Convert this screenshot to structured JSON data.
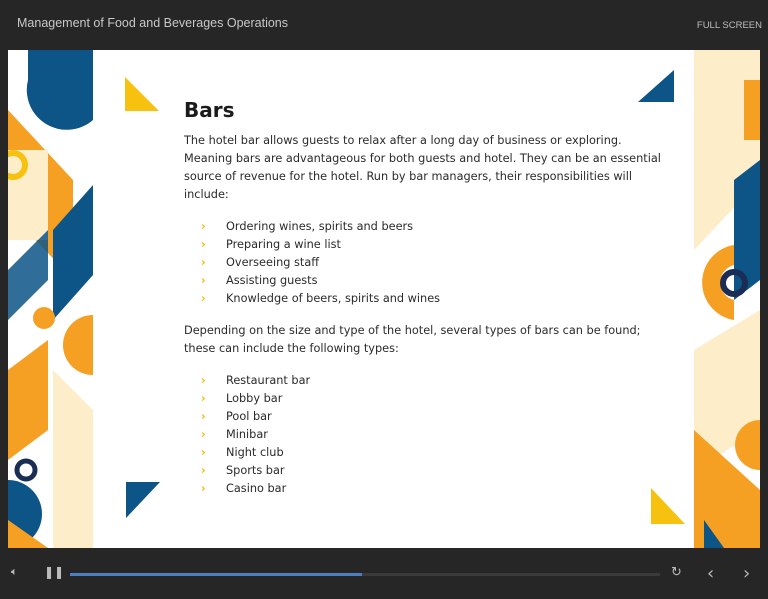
{
  "header": {
    "title": "Management of Food and Beverages Operations",
    "fullscreen_label": "FULL SCREEN"
  },
  "slide": {
    "heading": "Bars",
    "intro": "The hotel bar allows guests to relax after a long day of business or exploring. Meaning bars are advantageous for both guests and hotel. They can be an essential source of revenue for the hotel. Run by bar managers, their responsibilities will include:",
    "responsibilities": [
      "Ordering wines, spirits and beers",
      "Preparing a wine list",
      "Overseeing staff",
      "Assisting guests",
      "Knowledge of beers, spirits and wines"
    ],
    "types_intro": "Depending on the size and type of the hotel, several types of bars can be found; these can include the following types:",
    "types": [
      "Restaurant bar",
      "Lobby bar",
      "Pool bar",
      "Minibar",
      "Night club",
      "Sports bar",
      "Casino bar"
    ],
    "bullet_icon": "chevron-right-icon"
  },
  "player": {
    "progress_percent": 49.5,
    "icons": [
      "volume-icon",
      "pause-icon",
      "replay-icon",
      "previous-icon",
      "next-icon"
    ]
  },
  "colors": {
    "navy": "#0d5487",
    "orange": "#f5a023",
    "cream": "#fdedc8",
    "yellow": "#f7c20f",
    "progress": "#4d7fc0"
  }
}
